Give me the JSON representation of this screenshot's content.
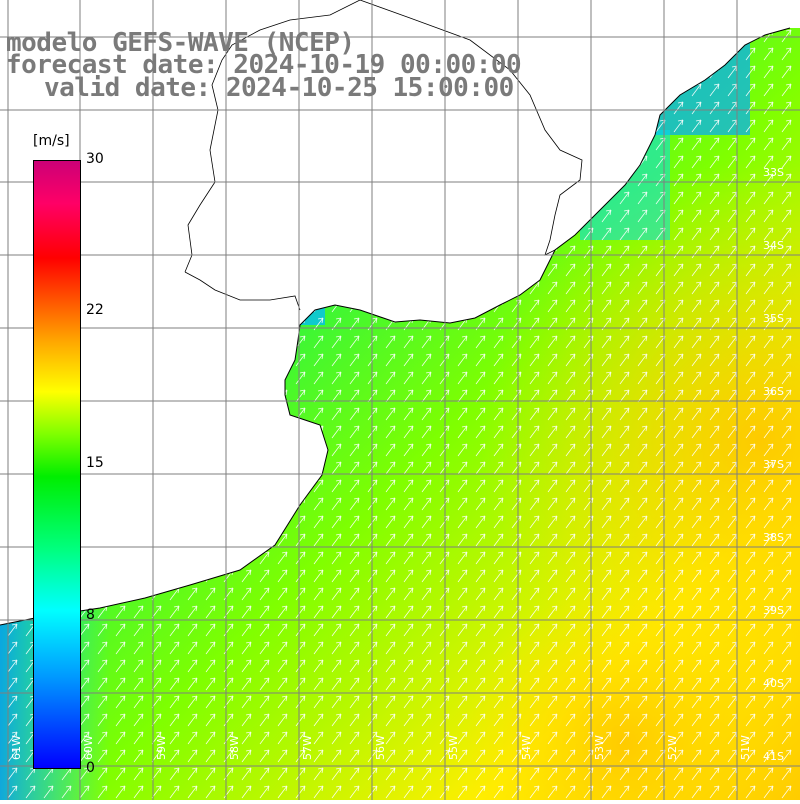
{
  "title": {
    "line1": "modelo GEFS-WAVE (NCEP)",
    "line2": "forecast date: 2024-10-19 00:00:00",
    "line3": "valid date: 2024-10-25 15:00:00"
  },
  "colorbar": {
    "unit": "[m/s]",
    "ticks": [
      "30",
      "22",
      "15",
      "8",
      "0"
    ],
    "tick_values": [
      30,
      22,
      15,
      8,
      0
    ],
    "colors": [
      "#0000ff",
      "#0099ff",
      "#00ffff",
      "#00ff7f",
      "#00ee00",
      "#7fff00",
      "#ffff00",
      "#ffaa00",
      "#ff5500",
      "#ff0000",
      "#ff0066",
      "#cc0077"
    ]
  },
  "map": {
    "lat_labels": [
      "33S",
      "34S",
      "35S",
      "36S",
      "37S",
      "38S",
      "39S",
      "40S",
      "41S"
    ],
    "lon_labels": [
      "61W",
      "60W",
      "59W",
      "58W",
      "57W",
      "56W",
      "55W",
      "54W",
      "53W",
      "52W",
      "51W"
    ],
    "land_color": "#ffffff",
    "grid_color": "#7f7f7f",
    "arrow_color": "#ffffff",
    "coast_color": "#000000"
  }
}
